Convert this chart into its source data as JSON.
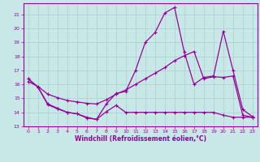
{
  "background_color": "#c8e8e8",
  "grid_color": "#a8d0d0",
  "line_color": "#990099",
  "xlabel": "Windchill (Refroidissement éolien,°C)",
  "xlim": [
    -0.5,
    23.5
  ],
  "ylim": [
    13,
    21.8
  ],
  "yticks": [
    13,
    14,
    15,
    16,
    17,
    18,
    19,
    20,
    21
  ],
  "xticks": [
    0,
    1,
    2,
    3,
    4,
    5,
    6,
    7,
    8,
    9,
    10,
    11,
    12,
    13,
    14,
    15,
    16,
    17,
    18,
    19,
    20,
    21,
    22,
    23
  ],
  "line1_x": [
    0,
    1,
    2,
    3,
    4,
    5,
    6,
    7,
    8,
    9,
    10,
    11,
    12,
    13,
    14,
    15,
    16,
    17,
    18,
    19,
    20,
    21,
    22,
    23
  ],
  "line1_y": [
    16.4,
    15.8,
    14.6,
    14.3,
    14.0,
    13.9,
    13.6,
    13.5,
    14.6,
    15.35,
    15.5,
    17.0,
    19.0,
    19.7,
    21.1,
    21.5,
    18.3,
    16.0,
    16.5,
    16.6,
    19.8,
    17.0,
    14.2,
    13.7
  ],
  "line2_x": [
    0,
    1,
    2,
    3,
    4,
    5,
    6,
    7,
    8,
    9,
    10,
    11,
    12,
    13,
    14,
    15,
    16,
    17,
    18,
    19,
    20,
    21,
    22,
    23
  ],
  "line2_y": [
    16.2,
    15.85,
    15.3,
    15.05,
    14.85,
    14.75,
    14.65,
    14.6,
    14.9,
    15.3,
    15.6,
    16.0,
    16.4,
    16.8,
    17.2,
    17.7,
    18.05,
    18.35,
    16.4,
    16.55,
    16.5,
    16.6,
    13.8,
    13.65
  ],
  "line3_x": [
    0,
    1,
    2,
    3,
    4,
    5,
    6,
    7,
    8,
    9,
    10,
    11,
    12,
    13,
    14,
    15,
    16,
    17,
    18,
    19,
    20,
    21,
    22,
    23
  ],
  "line3_y": [
    16.4,
    15.8,
    14.55,
    14.25,
    14.0,
    13.9,
    13.65,
    13.5,
    14.05,
    14.5,
    14.0,
    14.0,
    14.0,
    14.0,
    14.0,
    14.0,
    14.0,
    14.0,
    14.0,
    14.0,
    13.8,
    13.65,
    13.65,
    13.65
  ]
}
